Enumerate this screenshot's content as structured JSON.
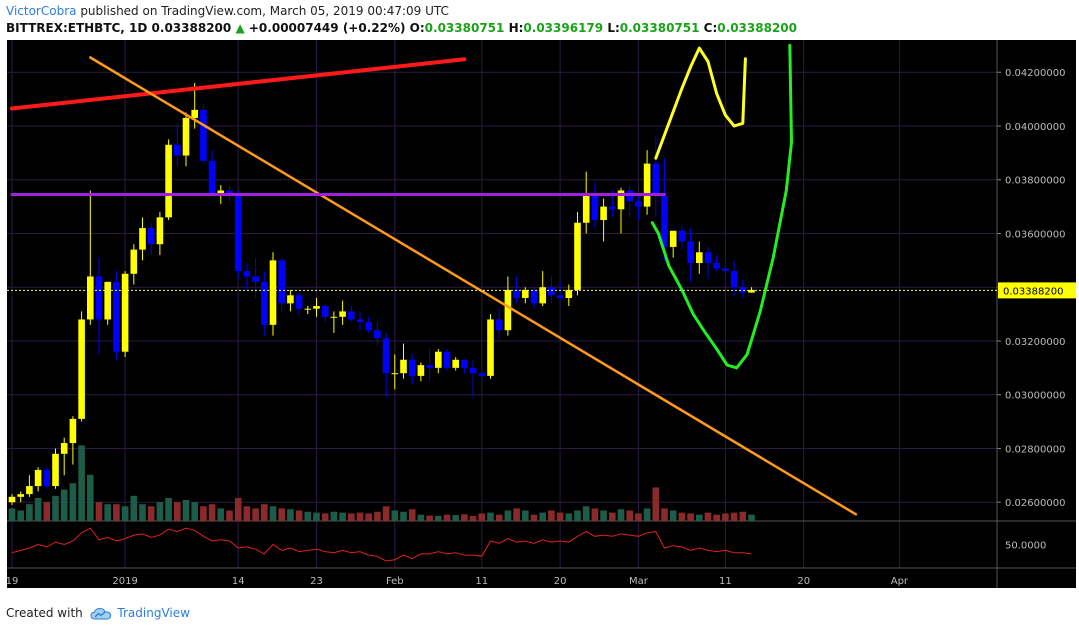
{
  "header": {
    "user": "VictorCobra",
    "published": "published on TradingView.com, March 05, 2019 00:47:09 UTC",
    "symbol": "BITTREX:ETHBTC, 1D",
    "last": "0.03388200",
    "change_arrow": "▲",
    "change": "+0.00007449 (+0.22%)",
    "o_label": "O:",
    "o_value": "0.03380751",
    "h_label": "H:",
    "h_value": "0.03396179",
    "l_label": "L:",
    "l_value": "0.03380751",
    "c_label": "C:",
    "c_value": "0.03388200"
  },
  "footer": {
    "created_with": "Created with",
    "brand": "TradingView",
    "logo_icon": "tradingview-cloud-icon"
  },
  "colors": {
    "background": "#000000",
    "bull": "#ffff00",
    "bear": "#0000ff",
    "vol_up": "#1e5c4a",
    "vol_down": "#8b2a2a",
    "grid": "#2a1a44",
    "price_line": "#ffff66",
    "rsi": "#e02020",
    "trend_red": "#ff1a1a",
    "trend_orange": "#ff9a1a",
    "level_purple": "#a020e0",
    "proj_yellow": "#ffff22",
    "proj_green": "#22ee22"
  },
  "chart_data": {
    "type": "candlestick",
    "ylim": [
      0.0253,
      0.0432
    ],
    "y_ticks": [
      "0.04200000",
      "0.04000000",
      "0.03800000",
      "0.03600000",
      "0.03400000",
      "0.03200000",
      "0.03000000",
      "0.02800000",
      "0.02600000"
    ],
    "y_tick_values": [
      0.042,
      0.04,
      0.038,
      0.036,
      0.034,
      0.032,
      0.03,
      0.028,
      0.026
    ],
    "current_price_label": "0.03388200",
    "current_price": 0.033882,
    "rsi_label": "50.0000",
    "rsi_ylim": [
      30,
      70
    ],
    "x_labels": [
      {
        "text": "19",
        "day": 0
      },
      {
        "text": "2019",
        "day": 13
      },
      {
        "text": "14",
        "day": 26
      },
      {
        "text": "23",
        "day": 35
      },
      {
        "text": "Feb",
        "day": 44
      },
      {
        "text": "11",
        "day": 54
      },
      {
        "text": "20",
        "day": 63
      },
      {
        "text": "Mar",
        "day": 72
      },
      {
        "text": "11",
        "day": 82
      },
      {
        "text": "20",
        "day": 91
      },
      {
        "text": "Apr",
        "day": 102
      }
    ],
    "candles": [
      [
        0.026,
        0.0263,
        0.0259,
        0.0262,
        30
      ],
      [
        0.0262,
        0.0264,
        0.026,
        0.0263,
        25
      ],
      [
        0.0263,
        0.027,
        0.0262,
        0.0266,
        40
      ],
      [
        0.0266,
        0.0273,
        0.0264,
        0.0272,
        55
      ],
      [
        0.0272,
        0.0273,
        0.0265,
        0.0266,
        45
      ],
      [
        0.0266,
        0.028,
        0.0265,
        0.0278,
        60
      ],
      [
        0.0278,
        0.0284,
        0.027,
        0.0282,
        75
      ],
      [
        0.0282,
        0.0292,
        0.0274,
        0.0291,
        90
      ],
      [
        0.0291,
        0.0331,
        0.029,
        0.0328,
        180
      ],
      [
        0.0328,
        0.0376,
        0.0326,
        0.0344,
        110
      ],
      [
        0.0344,
        0.0351,
        0.0315,
        0.0328,
        45
      ],
      [
        0.0328,
        0.0342,
        0.0326,
        0.0342,
        40
      ],
      [
        0.0342,
        0.0346,
        0.0313,
        0.0316,
        40
      ],
      [
        0.0316,
        0.0346,
        0.0314,
        0.0345,
        35
      ],
      [
        0.0345,
        0.0356,
        0.0341,
        0.0354,
        60
      ],
      [
        0.0354,
        0.0366,
        0.035,
        0.0362,
        40
      ],
      [
        0.0362,
        0.0364,
        0.0352,
        0.0356,
        35
      ],
      [
        0.0356,
        0.0368,
        0.0352,
        0.0366,
        45
      ],
      [
        0.0366,
        0.0395,
        0.0365,
        0.0393,
        55
      ],
      [
        0.0393,
        0.0401,
        0.0385,
        0.0389,
        45
      ],
      [
        0.0389,
        0.0405,
        0.0385,
        0.0403,
        50
      ],
      [
        0.0403,
        0.0416,
        0.0399,
        0.0406,
        45
      ],
      [
        0.0406,
        0.0408,
        0.0386,
        0.0387,
        35
      ],
      [
        0.0387,
        0.0391,
        0.0374,
        0.0375,
        40
      ],
      [
        0.0375,
        0.0378,
        0.0371,
        0.0376,
        30
      ],
      [
        0.0376,
        0.0378,
        0.0372,
        0.0375,
        25
      ],
      [
        0.0375,
        0.0376,
        0.0343,
        0.0346,
        55
      ],
      [
        0.0346,
        0.0349,
        0.0339,
        0.0344,
        35
      ],
      [
        0.0344,
        0.0351,
        0.0336,
        0.0342,
        30
      ],
      [
        0.0342,
        0.0346,
        0.0322,
        0.0326,
        40
      ],
      [
        0.0326,
        0.0353,
        0.0322,
        0.035,
        35
      ],
      [
        0.035,
        0.0351,
        0.0331,
        0.0334,
        30
      ],
      [
        0.0334,
        0.0339,
        0.0331,
        0.0337,
        28
      ],
      [
        0.0337,
        0.0338,
        0.0329,
        0.0332,
        25
      ],
      [
        0.0332,
        0.0333,
        0.033,
        0.0332,
        22
      ],
      [
        0.0332,
        0.0336,
        0.0329,
        0.0333,
        20
      ],
      [
        0.0333,
        0.0334,
        0.0327,
        0.0329,
        18
      ],
      [
        0.0329,
        0.0331,
        0.0323,
        0.0329,
        22
      ],
      [
        0.0329,
        0.0335,
        0.0326,
        0.0331,
        20
      ],
      [
        0.0331,
        0.0333,
        0.0327,
        0.0328,
        18
      ],
      [
        0.0328,
        0.0331,
        0.0324,
        0.0327,
        20
      ],
      [
        0.0327,
        0.0329,
        0.0323,
        0.0324,
        18
      ],
      [
        0.0324,
        0.0327,
        0.0318,
        0.0321,
        22
      ],
      [
        0.0321,
        0.0323,
        0.0299,
        0.0308,
        35
      ],
      [
        0.0308,
        0.0315,
        0.0302,
        0.0308,
        25
      ],
      [
        0.0308,
        0.0319,
        0.0306,
        0.0313,
        22
      ],
      [
        0.0313,
        0.0315,
        0.0304,
        0.0307,
        28
      ],
      [
        0.0307,
        0.0312,
        0.0305,
        0.0311,
        15
      ],
      [
        0.0311,
        0.0317,
        0.0305,
        0.031,
        13
      ],
      [
        0.031,
        0.0317,
        0.0308,
        0.0316,
        12
      ],
      [
        0.0316,
        0.0317,
        0.0309,
        0.031,
        15
      ],
      [
        0.031,
        0.0314,
        0.0309,
        0.0313,
        14
      ],
      [
        0.0313,
        0.0313,
        0.0308,
        0.031,
        16
      ],
      [
        0.031,
        0.0313,
        0.0299,
        0.0308,
        12
      ],
      [
        0.0308,
        0.0309,
        0.0306,
        0.0307,
        18
      ],
      [
        0.0307,
        0.033,
        0.0306,
        0.0328,
        20
      ],
      [
        0.0328,
        0.0332,
        0.032,
        0.0324,
        15
      ],
      [
        0.0324,
        0.0344,
        0.0322,
        0.0339,
        25
      ],
      [
        0.0339,
        0.0344,
        0.0334,
        0.0336,
        30
      ],
      [
        0.0336,
        0.034,
        0.0334,
        0.0339,
        25
      ],
      [
        0.0339,
        0.034,
        0.0332,
        0.0334,
        15
      ],
      [
        0.0334,
        0.0346,
        0.0333,
        0.034,
        20
      ],
      [
        0.034,
        0.0344,
        0.0334,
        0.0337,
        25
      ],
      [
        0.0337,
        0.0342,
        0.0335,
        0.0336,
        20
      ],
      [
        0.0336,
        0.0341,
        0.0333,
        0.0339,
        18
      ],
      [
        0.0339,
        0.0368,
        0.0337,
        0.0364,
        25
      ],
      [
        0.0364,
        0.0383,
        0.036,
        0.0375,
        35
      ],
      [
        0.0375,
        0.0379,
        0.0362,
        0.0365,
        30
      ],
      [
        0.0365,
        0.0373,
        0.0357,
        0.037,
        25
      ],
      [
        0.037,
        0.0376,
        0.0366,
        0.0369,
        20
      ],
      [
        0.0369,
        0.0377,
        0.036,
        0.0376,
        28
      ],
      [
        0.0376,
        0.0378,
        0.0366,
        0.0372,
        25
      ],
      [
        0.0372,
        0.0375,
        0.0365,
        0.037,
        18
      ],
      [
        0.037,
        0.0391,
        0.0367,
        0.0386,
        30
      ],
      [
        0.0386,
        0.0396,
        0.0366,
        0.0374,
        80
      ],
      [
        0.0374,
        0.0388,
        0.035,
        0.0355,
        30
      ],
      [
        0.0355,
        0.0361,
        0.0351,
        0.0361,
        25
      ],
      [
        0.0361,
        0.0363,
        0.0354,
        0.0357,
        20
      ],
      [
        0.0357,
        0.0362,
        0.0342,
        0.0349,
        18
      ],
      [
        0.0349,
        0.0357,
        0.0345,
        0.0353,
        15
      ],
      [
        0.0353,
        0.0355,
        0.0343,
        0.0349,
        20
      ],
      [
        0.0349,
        0.0352,
        0.0346,
        0.0347,
        15
      ],
      [
        0.0347,
        0.035,
        0.0341,
        0.0346,
        18
      ],
      [
        0.0346,
        0.035,
        0.0337,
        0.034,
        20
      ],
      [
        0.034,
        0.0343,
        0.0336,
        0.0338,
        22
      ],
      [
        0.0338,
        0.034,
        0.0338,
        0.0339,
        15
      ]
    ],
    "rsi": [
      [
        0,
        43
      ],
      [
        1,
        45
      ],
      [
        2,
        47
      ],
      [
        3,
        50
      ],
      [
        4,
        48
      ],
      [
        5,
        52
      ],
      [
        6,
        50
      ],
      [
        7,
        53
      ],
      [
        8,
        60
      ],
      [
        9,
        64
      ],
      [
        10,
        54
      ],
      [
        11,
        56
      ],
      [
        12,
        53
      ],
      [
        13,
        55
      ],
      [
        14,
        58
      ],
      [
        15,
        59
      ],
      [
        16,
        56
      ],
      [
        17,
        58
      ],
      [
        18,
        63
      ],
      [
        19,
        61
      ],
      [
        20,
        64
      ],
      [
        21,
        62
      ],
      [
        22,
        57
      ],
      [
        23,
        53
      ],
      [
        24,
        54
      ],
      [
        25,
        53
      ],
      [
        26,
        47
      ],
      [
        27,
        48
      ],
      [
        28,
        46
      ],
      [
        29,
        42
      ],
      [
        30,
        50
      ],
      [
        31,
        45
      ],
      [
        32,
        47
      ],
      [
        33,
        44
      ],
      [
        34,
        45
      ],
      [
        35,
        46
      ],
      [
        36,
        44
      ],
      [
        37,
        43
      ],
      [
        38,
        45
      ],
      [
        39,
        43
      ],
      [
        40,
        44
      ],
      [
        41,
        41
      ],
      [
        42,
        40
      ],
      [
        43,
        36
      ],
      [
        44,
        37
      ],
      [
        45,
        41
      ],
      [
        46,
        38
      ],
      [
        47,
        42
      ],
      [
        48,
        42
      ],
      [
        49,
        44
      ],
      [
        50,
        42
      ],
      [
        51,
        43
      ],
      [
        52,
        41
      ],
      [
        53,
        41
      ],
      [
        54,
        40
      ],
      [
        55,
        53
      ],
      [
        56,
        51
      ],
      [
        57,
        55
      ],
      [
        58,
        52
      ],
      [
        59,
        53
      ],
      [
        60,
        51
      ],
      [
        61,
        54
      ],
      [
        62,
        52
      ],
      [
        63,
        53
      ],
      [
        64,
        52
      ],
      [
        65,
        57
      ],
      [
        66,
        61
      ],
      [
        67,
        57
      ],
      [
        68,
        58
      ],
      [
        69,
        57
      ],
      [
        70,
        59
      ],
      [
        71,
        58
      ],
      [
        72,
        57
      ],
      [
        73,
        60
      ],
      [
        74,
        61
      ],
      [
        75,
        47
      ],
      [
        76,
        49
      ],
      [
        77,
        48
      ],
      [
        78,
        45
      ],
      [
        79,
        47
      ],
      [
        80,
        45
      ],
      [
        81,
        44
      ],
      [
        82,
        45
      ],
      [
        83,
        43
      ],
      [
        84,
        43
      ],
      [
        85,
        42
      ]
    ],
    "drawings": [
      {
        "name": "red-trendline",
        "points": [
          [
            0,
            0.04065
          ],
          [
            52,
            0.04248
          ]
        ]
      },
      {
        "name": "orange-trendline",
        "points": [
          [
            9,
            0.04255
          ],
          [
            97,
            0.02555
          ]
        ]
      },
      {
        "name": "purple-level",
        "points": [
          [
            0,
            0.03745
          ],
          [
            75,
            0.03745
          ]
        ]
      },
      {
        "name": "yellow-projection",
        "points": [
          [
            74,
            0.0388
          ],
          [
            77,
            0.0414
          ],
          [
            78,
            0.0422
          ],
          [
            79,
            0.0429
          ],
          [
            80,
            0.0424
          ],
          [
            81,
            0.0412
          ],
          [
            82,
            0.0404
          ],
          [
            83,
            0.04
          ],
          [
            84,
            0.0401
          ],
          [
            84.3,
            0.0425
          ]
        ]
      },
      {
        "name": "green-projection",
        "points": [
          [
            73.6,
            0.0364
          ],
          [
            74.3,
            0.036
          ],
          [
            75.5,
            0.0348
          ],
          [
            77,
            0.0339
          ],
          [
            78.3,
            0.033
          ],
          [
            79.5,
            0.0324
          ],
          [
            81,
            0.0317
          ],
          [
            82.2,
            0.0311
          ],
          [
            83.3,
            0.031
          ],
          [
            84.5,
            0.0315
          ],
          [
            86,
            0.0331
          ],
          [
            87.5,
            0.0351
          ],
          [
            89,
            0.0376
          ],
          [
            89.6,
            0.0394
          ],
          [
            89.4,
            0.043
          ]
        ]
      }
    ]
  }
}
